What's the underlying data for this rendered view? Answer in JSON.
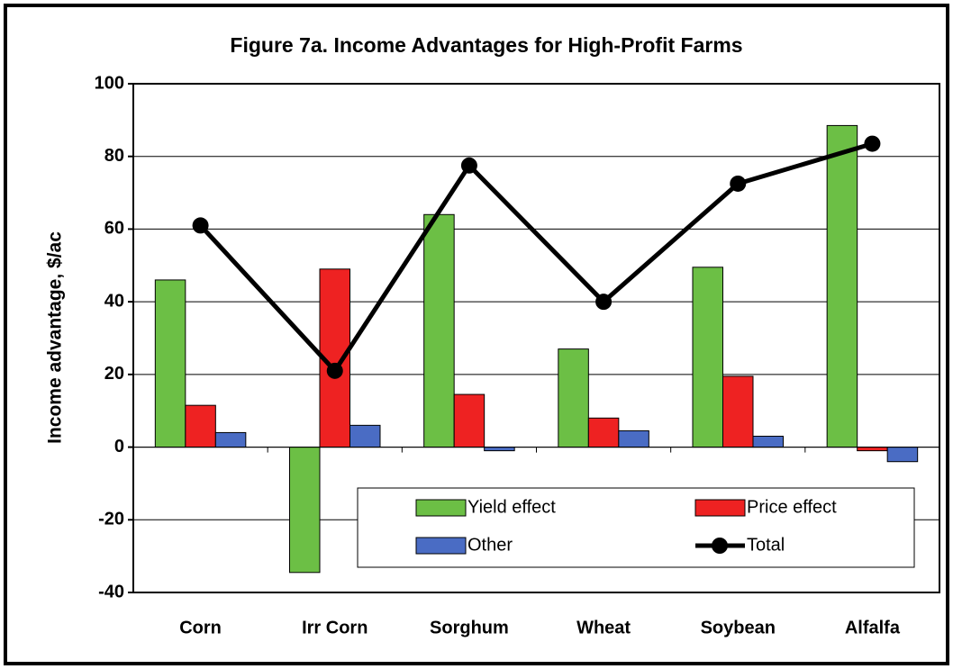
{
  "chart_data": {
    "type": "bar",
    "title": "Figure 7a.  Income Advantages for High-Profit Farms",
    "y_label": "Income advantage, $/ac",
    "categories": [
      "Corn",
      "Irr Corn",
      "Sorghum",
      "Wheat",
      "Soybean",
      "Alfalfa"
    ],
    "series": [
      {
        "name": "Yield effect",
        "type": "bar",
        "color": "#6cbf45",
        "values": [
          46,
          -34.5,
          64,
          27,
          49.5,
          88.5
        ]
      },
      {
        "name": "Price effect",
        "type": "bar",
        "color": "#ee2222",
        "values": [
          11.5,
          49,
          14.5,
          8,
          19.5,
          -1
        ]
      },
      {
        "name": "Other",
        "type": "bar",
        "color": "#4a6cc4",
        "values": [
          4,
          6,
          -1,
          4.5,
          3,
          -4
        ]
      },
      {
        "name": "Total",
        "type": "line",
        "color": "#000000",
        "values": [
          61,
          21,
          77.5,
          40,
          72.5,
          83.5
        ]
      }
    ],
    "ylim": [
      -40,
      100
    ],
    "yticks": [
      -40,
      -20,
      0,
      20,
      40,
      60,
      80,
      100
    ],
    "grid": true,
    "legend": "lower right"
  }
}
